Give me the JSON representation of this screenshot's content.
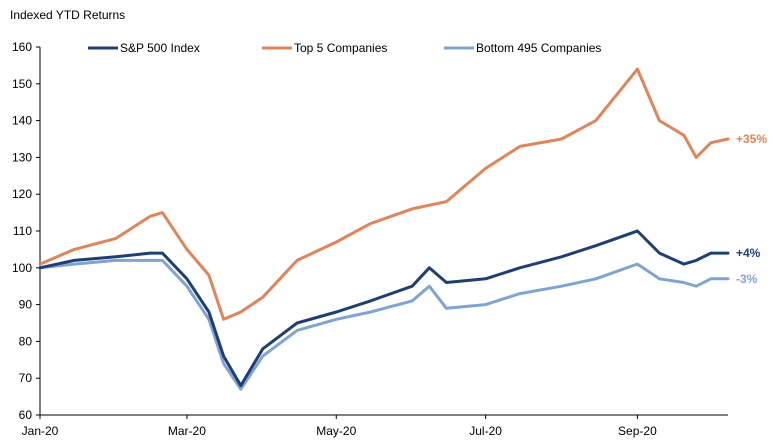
{
  "chart_data": {
    "type": "line",
    "title": "Indexed YTD Returns",
    "xlabel": "",
    "ylabel": "",
    "ylim": [
      60,
      160
    ],
    "y_ticks": [
      60,
      70,
      80,
      90,
      100,
      110,
      120,
      130,
      140,
      150,
      160
    ],
    "x_ticks": [
      "Jan-20",
      "Mar-20",
      "May-20",
      "Jul-20",
      "Sep-20"
    ],
    "x": [
      "Jan-01",
      "Jan-15",
      "Feb-01",
      "Feb-15",
      "Feb-20",
      "Mar-01",
      "Mar-10",
      "Mar-16",
      "Mar-23",
      "Apr-01",
      "Apr-15",
      "May-01",
      "May-15",
      "Jun-01",
      "Jun-08",
      "Jun-15",
      "Jul-01",
      "Jul-15",
      "Aug-01",
      "Aug-15",
      "Sep-01",
      "Sep-10",
      "Sep-20",
      "Sep-25",
      "Oct-01",
      "Oct-08"
    ],
    "grid": false,
    "legend_position": "top",
    "series": [
      {
        "name": "S&P 500 Index",
        "color": "#1f3f73",
        "end_label": "+4%",
        "values": [
          100,
          102,
          103,
          104,
          104,
          97,
          88,
          76,
          68,
          78,
          85,
          88,
          91,
          95,
          100,
          96,
          97,
          100,
          103,
          106,
          110,
          104,
          101,
          102,
          104,
          104
        ]
      },
      {
        "name": "Top 5 Companies",
        "color": "#e0845a",
        "end_label": "+35%",
        "values": [
          101,
          105,
          108,
          114,
          115,
          105,
          98,
          86,
          88,
          92,
          102,
          107,
          112,
          116,
          117,
          118,
          127,
          133,
          135,
          140,
          154,
          140,
          136,
          130,
          134,
          135
        ]
      },
      {
        "name": "Bottom 495 Companies",
        "color": "#7fa4d4",
        "end_label": "-3%",
        "values": [
          100,
          101,
          102,
          102,
          102,
          95,
          86,
          74,
          67,
          76,
          83,
          86,
          88,
          91,
          95,
          89,
          90,
          93,
          95,
          97,
          101,
          97,
          96,
          95,
          97,
          97
        ]
      }
    ]
  }
}
